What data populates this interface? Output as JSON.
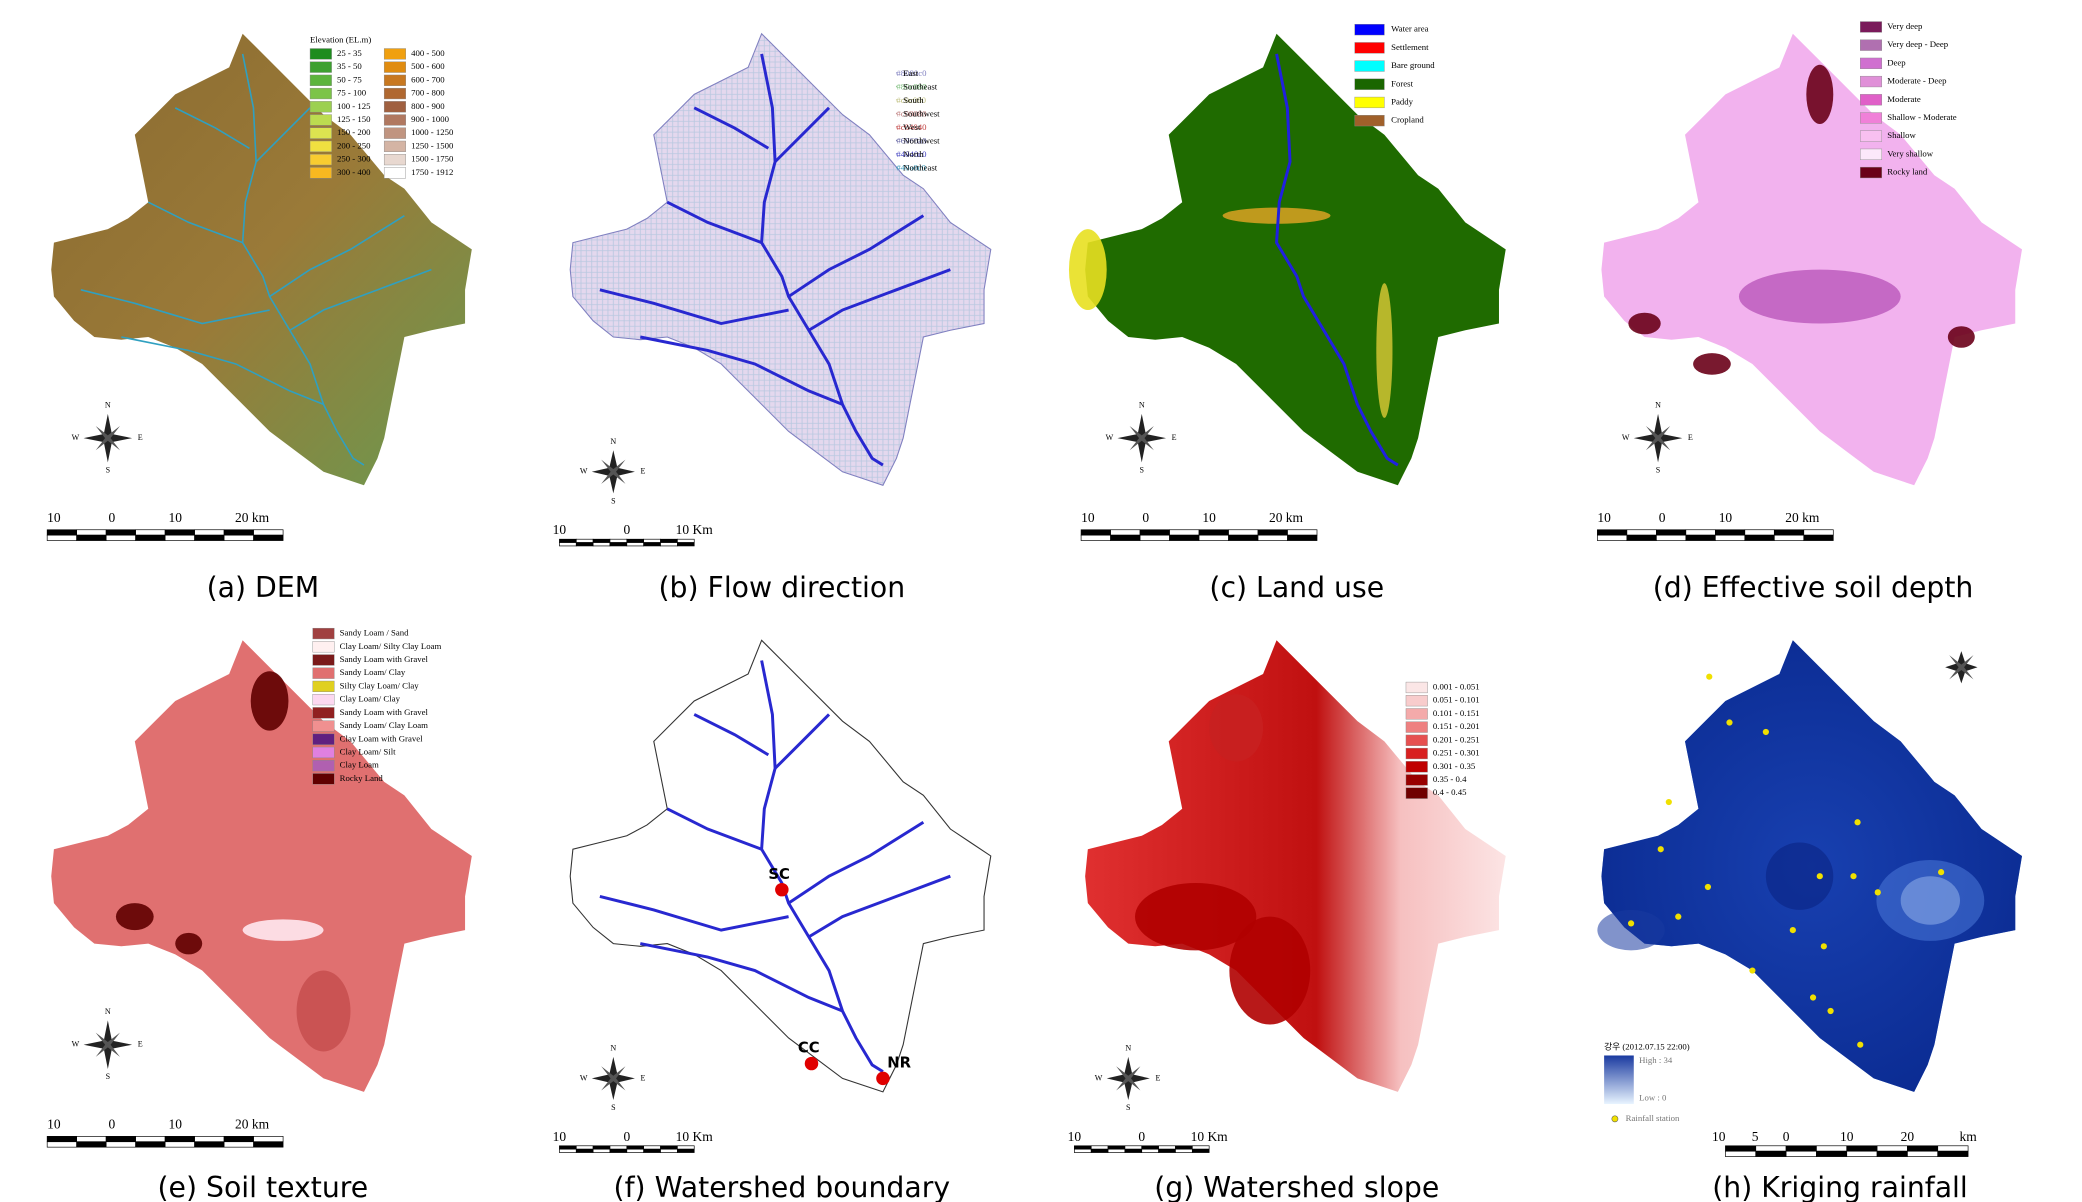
{
  "panels": [
    {
      "caption": "(a) DEM",
      "legend_title": "Elevation (EL.m)",
      "legend": [
        {
          "label": "25 - 35",
          "color": "#1e8c1e"
        },
        {
          "label": "35 - 50",
          "color": "#3ea030"
        },
        {
          "label": "50 - 75",
          "color": "#5cb43c"
        },
        {
          "label": "75 - 100",
          "color": "#7cc448"
        },
        {
          "label": "100 - 125",
          "color": "#9cd050"
        },
        {
          "label": "125 - 150",
          "color": "#bcdc50"
        },
        {
          "label": "150 - 200",
          "color": "#dce450"
        },
        {
          "label": "200 - 250",
          "color": "#f0e040"
        },
        {
          "label": "250 - 300",
          "color": "#f8cc30"
        },
        {
          "label": "300 - 400",
          "color": "#f8b820"
        },
        {
          "label": "400 - 500",
          "color": "#f0a010"
        },
        {
          "label": "500 - 600",
          "color": "#e08c10"
        },
        {
          "label": "600 - 700",
          "color": "#c87820"
        },
        {
          "label": "700 - 800",
          "color": "#b06830"
        },
        {
          "label": "800 - 900",
          "color": "#a06040"
        },
        {
          "label": "900 - 1000",
          "color": "#b07860"
        },
        {
          "label": "1000 - 1250",
          "color": "#c09480"
        },
        {
          "label": "1250 - 1500",
          "color": "#d4b4a4"
        },
        {
          "label": "1500 - 1750",
          "color": "#e8d8d0"
        },
        {
          "label": "1750 - 1912",
          "color": "#ffffff"
        }
      ],
      "compass": [
        "N",
        "S",
        "W",
        "E"
      ],
      "scale_labels": [
        "10",
        "0",
        "10",
        "20 km"
      ]
    },
    {
      "caption": "(b) Flow direction",
      "legend": [
        {
          "label": "East",
          "color": "#8080c0"
        },
        {
          "label": "Southeast",
          "color": "#80c080"
        },
        {
          "label": "South",
          "color": "#c0c080"
        },
        {
          "label": "Southwest",
          "color": "#c08080"
        },
        {
          "label": "West",
          "color": "#c04040"
        },
        {
          "label": "Northwest",
          "color": "#6060a0"
        },
        {
          "label": "North",
          "color": "#4040c0"
        },
        {
          "label": "Northeast",
          "color": "#40a0c0"
        }
      ],
      "compass": [
        "N",
        "S",
        "W",
        "E"
      ],
      "scale_labels": [
        "10",
        "0",
        "10 Km"
      ]
    },
    {
      "caption": "(c) Land use",
      "legend": [
        {
          "label": "Water area",
          "color": "#0000ff"
        },
        {
          "label": "Settlement",
          "color": "#ff0000"
        },
        {
          "label": "Bare ground",
          "color": "#00ffff"
        },
        {
          "label": "Forest",
          "color": "#1a6600"
        },
        {
          "label": "Paddy",
          "color": "#ffff00"
        },
        {
          "label": "Cropland",
          "color": "#a0602a"
        }
      ],
      "compass": [
        "N",
        "S",
        "W",
        "E"
      ],
      "scale_labels": [
        "10",
        "0",
        "10",
        "20 km"
      ]
    },
    {
      "caption": "(d) Effective soil depth",
      "legend": [
        {
          "label": "Very deep",
          "color": "#7a1a5a"
        },
        {
          "label": "Very deep - Deep",
          "color": "#b070b0"
        },
        {
          "label": "Deep",
          "color": "#d070d0"
        },
        {
          "label": "Moderate - Deep",
          "color": "#e090d8"
        },
        {
          "label": "Moderate",
          "color": "#e060c8"
        },
        {
          "label": "Shallow - Moderate",
          "color": "#f080d8"
        },
        {
          "label": "Shallow",
          "color": "#f8c0f0"
        },
        {
          "label": "Very shallow",
          "color": "#fce8fa"
        },
        {
          "label": "Rocky land",
          "color": "#6a0018"
        }
      ],
      "compass": [
        "N",
        "S",
        "W",
        "E"
      ],
      "scale_labels": [
        "10",
        "0",
        "10",
        "20 km"
      ]
    },
    {
      "caption": "(e) Soil texture",
      "legend": [
        {
          "label": "Sandy Loam / Sand",
          "color": "#a04040"
        },
        {
          "label": "Clay Loam/ Silty Clay Loam",
          "color": "#fff0f0"
        },
        {
          "label": "Sandy Loam with Gravel",
          "color": "#7a1a1a"
        },
        {
          "label": "Sandy Loam/ Clay",
          "color": "#e07070"
        },
        {
          "label": "Silty Clay Loam/ Clay",
          "color": "#e0d020"
        },
        {
          "label": "Clay Loam/ Clay",
          "color": "#fcd8f0"
        },
        {
          "label": "Sandy Loam with Gravel",
          "color": "#902020"
        },
        {
          "label": "Sandy Loam/ Clay Loam",
          "color": "#f09090"
        },
        {
          "label": "Clay Loam  with Gravel",
          "color": "#602080"
        },
        {
          "label": "Clay Loam/ Silt",
          "color": "#e080e0"
        },
        {
          "label": "Clay Loam",
          "color": "#b060b0"
        },
        {
          "label": "Rocky Land",
          "color": "#600000"
        }
      ],
      "compass": [
        "N",
        "S",
        "W",
        "E"
      ],
      "scale_labels": [
        "10",
        "0",
        "10",
        "20 km"
      ]
    },
    {
      "caption": "(f) Watershed boundary",
      "stations": [
        "SC",
        "CC",
        "NR"
      ],
      "compass": [
        "N",
        "S",
        "W",
        "E"
      ],
      "scale_labels": [
        "10",
        "0",
        "10 Km"
      ]
    },
    {
      "caption": "(g) Watershed slope",
      "legend": [
        {
          "label": "0.001 - 0.051",
          "color": "#fbe6e6"
        },
        {
          "label": "0.051 - 0.101",
          "color": "#f8cccc"
        },
        {
          "label": "0.101 - 0.151",
          "color": "#f4aaaa"
        },
        {
          "label": "0.151 - 0.201",
          "color": "#ee8080"
        },
        {
          "label": "0.201 - 0.251",
          "color": "#e65050"
        },
        {
          "label": "0.251 - 0.301",
          "color": "#d82020"
        },
        {
          "label": "0.301 - 0.35",
          "color": "#c00000"
        },
        {
          "label": "0.35 - 0.4",
          "color": "#980000"
        },
        {
          "label": "0.4 - 0.45",
          "color": "#700000"
        }
      ],
      "compass": [
        "N",
        "S",
        "W",
        "E"
      ],
      "scale_labels": [
        "10",
        "0",
        "10 Km"
      ]
    },
    {
      "caption": "(h) Kriging rainfall",
      "legend_title": "강우 (2012.07.15 22:00)",
      "high": "High : 34",
      "low": "Low : 0",
      "station_label": "Rainfall station",
      "scale_labels": [
        "10",
        "5",
        "0",
        "10",
        "20",
        "km"
      ]
    }
  ]
}
